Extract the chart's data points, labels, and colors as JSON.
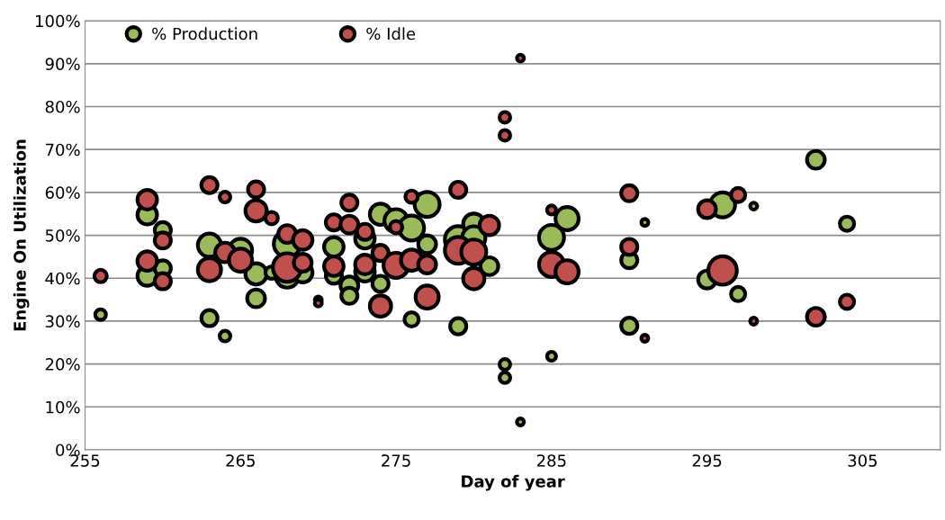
{
  "chart_data": {
    "type": "bubble",
    "xlabel": "Day of year",
    "ylabel": "Engine On Utilization",
    "xlim": [
      255,
      310
    ],
    "xticks": [
      255,
      265,
      275,
      285,
      295,
      305
    ],
    "ylim": [
      0,
      100
    ],
    "yticks": [
      {
        "value": 0,
        "label": "0%"
      },
      {
        "value": 10,
        "label": "10%"
      },
      {
        "value": 20,
        "label": "20%"
      },
      {
        "value": 30,
        "label": "30%"
      },
      {
        "value": 40,
        "label": "40%"
      },
      {
        "value": 50,
        "label": "50%"
      },
      {
        "value": 60,
        "label": "60%"
      },
      {
        "value": 70,
        "label": "70%"
      },
      {
        "value": 80,
        "label": "80%"
      },
      {
        "value": 90,
        "label": "90%"
      },
      {
        "value": 100,
        "label": "100%"
      }
    ],
    "grid": "y",
    "legend": "top left",
    "series": [
      {
        "name": "% Production",
        "color": "#9bbb59",
        "x": [
          256,
          259,
          259,
          260,
          260,
          263,
          263,
          264,
          265,
          266,
          266,
          267,
          268,
          268,
          269,
          270,
          271,
          271,
          272,
          272,
          273,
          273,
          274,
          274,
          275,
          276,
          276,
          277,
          277,
          279,
          279,
          280,
          280,
          281,
          282,
          282,
          283,
          285,
          285,
          286,
          290,
          290,
          291,
          295,
          296,
          297,
          298,
          302,
          304
        ],
        "values": [
          31.5,
          54.8,
          40.5,
          51.2,
          42.3,
          47.7,
          30.7,
          26.5,
          46.5,
          41,
          35.3,
          41.3,
          48,
          40.5,
          41.3,
          34.9,
          47.3,
          40.6,
          38.3,
          35.9,
          49.2,
          41.5,
          54.9,
          38.7,
          53.4,
          51.7,
          30.4,
          57.2,
          47.9,
          49,
          28.8,
          52.6,
          49.4,
          42.8,
          19.9,
          16.8,
          6.5,
          49.5,
          21.8,
          53.9,
          44.2,
          28.9,
          53,
          39.7,
          57.1,
          36.3,
          56.8,
          67.6,
          52.7
        ],
        "sizes": [
          0.14,
          0.47,
          0.47,
          0.32,
          0.32,
          0.66,
          0.32,
          0.14,
          0.66,
          0.56,
          0.39,
          0.19,
          0.88,
          0.66,
          0.47,
          0.06,
          0.47,
          0.32,
          0.39,
          0.32,
          0.47,
          0.47,
          0.56,
          0.32,
          0.66,
          0.77,
          0.25,
          0.77,
          0.39,
          0.88,
          0.32,
          0.56,
          0.66,
          0.39,
          0.14,
          0.14,
          0.06,
          0.77,
          0.1,
          0.66,
          0.32,
          0.32,
          0.06,
          0.39,
          0.77,
          0.25,
          0.06,
          0.39,
          0.25
        ]
      },
      {
        "name": "% Idle",
        "color": "#c0504d",
        "x": [
          256,
          259,
          259,
          260,
          260,
          263,
          263,
          264,
          264,
          265,
          266,
          266,
          267,
          268,
          268,
          269,
          269,
          270,
          271,
          271,
          272,
          272,
          273,
          273,
          274,
          274,
          275,
          275,
          276,
          276,
          277,
          277,
          279,
          279,
          280,
          280,
          281,
          282,
          282,
          283,
          285,
          285,
          286,
          290,
          290,
          291,
          295,
          296,
          297,
          298,
          302,
          304
        ],
        "values": [
          40.5,
          58.3,
          44,
          48.8,
          39.3,
          61.7,
          42,
          58.9,
          46,
          44.2,
          60.7,
          55.7,
          54,
          50.3,
          42.5,
          48.9,
          43.6,
          34.2,
          53,
          42.8,
          57.6,
          52.5,
          50.8,
          43.2,
          45.9,
          33.5,
          51.9,
          43,
          59,
          44.2,
          43.2,
          35.6,
          60.6,
          46.5,
          46.1,
          39.9,
          52.3,
          77.5,
          73.3,
          91.3,
          55.9,
          43.2,
          41.5,
          59.8,
          47.3,
          26,
          56.1,
          41.8,
          59.4,
          30,
          31,
          34.5
        ],
        "sizes": [
          0.19,
          0.47,
          0.47,
          0.32,
          0.32,
          0.32,
          0.66,
          0.14,
          0.47,
          0.66,
          0.32,
          0.56,
          0.19,
          0.39,
          1,
          0.47,
          0.39,
          0.06,
          0.32,
          0.47,
          0.32,
          0.39,
          0.32,
          0.47,
          0.32,
          0.56,
          0.19,
          0.77,
          0.19,
          0.56,
          0.39,
          0.66,
          0.32,
          0.88,
          0.77,
          0.56,
          0.47,
          0.14,
          0.14,
          0.06,
          0.1,
          0.77,
          0.66,
          0.32,
          0.32,
          0.06,
          0.39,
          1,
          0.25,
          0.06,
          0.39,
          0.25
        ]
      }
    ]
  }
}
